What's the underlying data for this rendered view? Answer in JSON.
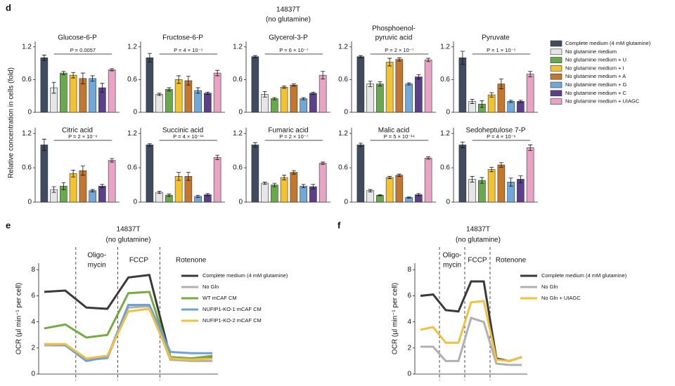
{
  "panel_labels": [
    "d",
    "e",
    "f"
  ],
  "header": [
    "14837T",
    "(no glutamine)"
  ],
  "bar_ylabel": "Relative concentration in cells (fold)",
  "bar_legend": {
    "names": [
      "Complete medium (4 mM glutamine)",
      "No glutamine medium",
      "No glutamine medium + U",
      "No glutamine medium + I",
      "No glutamine medium + A",
      "No glutamine medium + G",
      "No glutamine medium + C",
      "No glutamine medium + UIAGC"
    ],
    "colors": [
      "#3f4b5e",
      "#e6e6e6",
      "#6aa84f",
      "#f1c232",
      "#c4772c",
      "#6fa8dc",
      "#5b3f8c",
      "#e9a3c4"
    ]
  },
  "chart_data": [
    {
      "type": "bar",
      "title": "Glucose-6-P",
      "annotation": "P = 0.0057",
      "values": [
        1.0,
        0.45,
        0.72,
        0.68,
        0.62,
        0.62,
        0.45,
        0.78
      ],
      "errors": [
        0.05,
        0.1,
        0.03,
        0.05,
        0.1,
        0.05,
        0.08,
        0.02
      ],
      "ylim": [
        0,
        1.3
      ],
      "yticks": [
        0,
        0.6,
        1.2
      ]
    },
    {
      "type": "bar",
      "title": "Fructose-6-P",
      "annotation": "P = 4 × 10⁻⁵",
      "values": [
        1.0,
        0.33,
        0.42,
        0.6,
        0.58,
        0.4,
        0.35,
        0.72
      ],
      "errors": [
        0.08,
        0.02,
        0.03,
        0.07,
        0.08,
        0.05,
        0.02,
        0.05
      ],
      "ylim": [
        0,
        1.3
      ],
      "yticks": [
        0,
        0.6,
        1.2
      ]
    },
    {
      "type": "bar",
      "title": "Glycerol-3-P",
      "annotation": "P = 6 × 10⁻⁷",
      "values": [
        1.02,
        0.33,
        0.25,
        0.46,
        0.5,
        0.25,
        0.35,
        0.68
      ],
      "errors": [
        0.02,
        0.05,
        0.02,
        0.02,
        0.02,
        0.02,
        0.02,
        0.07
      ],
      "ylim": [
        0,
        1.3
      ],
      "yticks": [
        0,
        0.6,
        1.2
      ]
    },
    {
      "type": "bar",
      "title": [
        "Phosphoenol-",
        "pyruvic acid"
      ],
      "annotation": "P = 2 × 10⁻⁷",
      "values": [
        1.02,
        0.52,
        0.52,
        0.92,
        0.97,
        0.52,
        0.65,
        0.96
      ],
      "errors": [
        0.02,
        0.05,
        0.04,
        0.07,
        0.03,
        0.02,
        0.04,
        0.03
      ],
      "ylim": [
        0,
        1.3
      ],
      "yticks": [
        0,
        0.6,
        1.2
      ]
    },
    {
      "type": "bar",
      "title": "Pyruvate",
      "annotation": "P = 1 × 10⁻⁵",
      "values": [
        1.0,
        0.2,
        0.15,
        0.32,
        0.52,
        0.2,
        0.2,
        0.7
      ],
      "errors": [
        0.12,
        0.04,
        0.06,
        0.04,
        0.09,
        0.02,
        0.02,
        0.05
      ],
      "ylim": [
        0,
        1.3
      ],
      "yticks": [
        0,
        0.6,
        1.2
      ]
    },
    {
      "type": "bar",
      "title": "Citric acid",
      "annotation": "P = 2 × 10⁻⁶",
      "values": [
        1.0,
        0.22,
        0.28,
        0.5,
        0.55,
        0.2,
        0.28,
        0.73
      ],
      "errors": [
        0.1,
        0.05,
        0.06,
        0.06,
        0.08,
        0.02,
        0.03,
        0.03
      ],
      "ylim": [
        0,
        1.3
      ],
      "yticks": [
        0,
        0.6,
        1.2
      ]
    },
    {
      "type": "bar",
      "title": "Succinic acid",
      "annotation": "P = 4 × 10⁻¹¹",
      "values": [
        1.0,
        0.17,
        0.12,
        0.45,
        0.45,
        0.1,
        0.13,
        0.78
      ],
      "errors": [
        0.02,
        0.02,
        0.02,
        0.07,
        0.07,
        0.02,
        0.02,
        0.04
      ],
      "ylim": [
        0,
        1.3
      ],
      "yticks": [
        0,
        0.6,
        1.2
      ]
    },
    {
      "type": "bar",
      "title": "Fumaric acid",
      "annotation": "P = 2 × 10⁻⁷",
      "values": [
        1.0,
        0.33,
        0.3,
        0.43,
        0.52,
        0.28,
        0.27,
        0.68
      ],
      "errors": [
        0.04,
        0.02,
        0.03,
        0.04,
        0.03,
        0.03,
        0.04,
        0.02
      ],
      "ylim": [
        0,
        1.3
      ],
      "yticks": [
        0,
        0.6,
        1.2
      ]
    },
    {
      "type": "bar",
      "title": "Malic acid",
      "annotation": "P = 5 × 10⁻¹⁴",
      "values": [
        1.0,
        0.2,
        0.12,
        0.43,
        0.47,
        0.08,
        0.13,
        0.77
      ],
      "errors": [
        0.03,
        0.02,
        0.01,
        0.02,
        0.02,
        0.01,
        0.02,
        0.02
      ],
      "ylim": [
        0,
        1.3
      ],
      "yticks": [
        0,
        0.6,
        1.2
      ]
    },
    {
      "type": "bar",
      "title": "Sedoheptulose 7-P",
      "annotation": "P = 4 × 10⁻⁶",
      "values": [
        1.0,
        0.4,
        0.38,
        0.57,
        0.65,
        0.35,
        0.4,
        0.95
      ],
      "errors": [
        0.05,
        0.05,
        0.05,
        0.04,
        0.04,
        0.07,
        0.06,
        0.05
      ],
      "ylim": [
        0,
        1.3
      ],
      "yticks": [
        0,
        0.6,
        1.2
      ]
    },
    {
      "type": "line",
      "title": [
        "14837T",
        "(no glutamine)"
      ],
      "ylabel": "OCR (µl min⁻¹ per cell)",
      "phases": [
        [
          "Oligo-",
          "mycin"
        ],
        "FCCP",
        "Rotenone"
      ],
      "categories": [
        null,
        null,
        null,
        null,
        null,
        null,
        null,
        null,
        null
      ],
      "ylim": [
        0,
        8.5
      ],
      "yticks": [
        0,
        2,
        4,
        6,
        8
      ],
      "series": [
        {
          "name": "Complete medium (4 mM glutamine)",
          "color": "#3a3a3a",
          "values": [
            6.3,
            6.4,
            5.1,
            5.0,
            7.4,
            7.6,
            1.3,
            1.2,
            1.3
          ]
        },
        {
          "name": "No Gln",
          "color": "#b0b0b0",
          "values": [
            2.2,
            2.2,
            1.1,
            1.2,
            5.1,
            5.2,
            1.1,
            1.0,
            1.0
          ]
        },
        {
          "name": "WT mCAF CM",
          "color": "#77aa44",
          "values": [
            3.5,
            3.8,
            2.8,
            3.0,
            6.2,
            6.3,
            1.3,
            1.2,
            1.4
          ]
        },
        {
          "name": "NUFIP1-KO-1 mCAF CM",
          "color": "#6fa0d8",
          "values": [
            2.3,
            2.2,
            1.0,
            1.3,
            5.3,
            5.3,
            1.7,
            1.6,
            1.6
          ]
        },
        {
          "name": "NUFIP1-KO-2 mCAF CM",
          "color": "#f2c040",
          "values": [
            2.3,
            2.3,
            1.2,
            1.4,
            4.8,
            5.0,
            1.2,
            1.1,
            1.2
          ]
        }
      ]
    },
    {
      "type": "line",
      "title": [
        "14837T",
        "(no glutamine)"
      ],
      "ylabel": "OCR (µl min⁻¹ per cell)",
      "phases": [
        [
          "Oligo-",
          "mycin"
        ],
        "FCCP",
        "Rotenone"
      ],
      "categories": [
        null,
        null,
        null,
        null,
        null,
        null,
        null,
        null,
        null
      ],
      "ylim": [
        0,
        8.5
      ],
      "yticks": [
        0,
        2,
        4,
        6,
        8
      ],
      "series": [
        {
          "name": "Complete medium (4 mM glutamine)",
          "color": "#3a3a3a",
          "values": [
            6.0,
            6.1,
            4.9,
            4.8,
            7.1,
            7.1,
            1.2,
            1.0,
            1.3
          ]
        },
        {
          "name": "No Gln",
          "color": "#b0b0b0",
          "values": [
            2.1,
            2.1,
            1.0,
            1.0,
            4.3,
            4.0,
            0.8,
            0.7,
            0.7
          ]
        },
        {
          "name": "No Gln + UIAGC",
          "color": "#f0c040",
          "values": [
            3.4,
            3.6,
            2.4,
            2.4,
            5.5,
            5.6,
            1.1,
            1.0,
            1.3
          ]
        }
      ]
    }
  ]
}
